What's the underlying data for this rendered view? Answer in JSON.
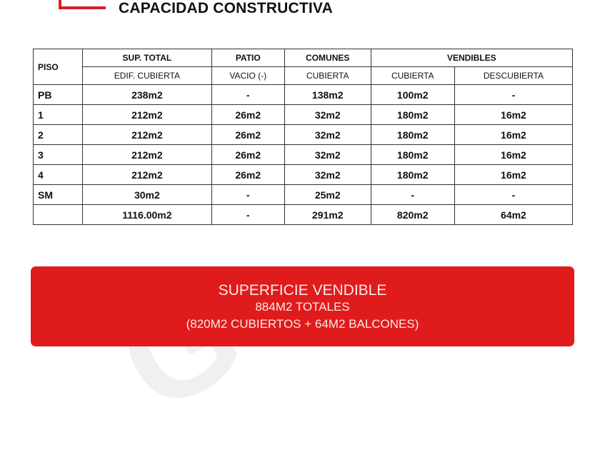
{
  "title": "CAPACIDAD CONSTRUCTIVA",
  "watermark": "Guimat propiedades",
  "table": {
    "header_top": [
      "PISO",
      "SUP. TOTAL",
      "PATIO",
      "COMUNES",
      "VENDIBLES"
    ],
    "header_sub": [
      "EDIF. CUBIERTA",
      "VACIO (-)",
      "CUBIERTA",
      "CUBIERTA",
      "DESCUBIERTA"
    ],
    "rows": [
      [
        "PB",
        "238m2",
        "-",
        "138m2",
        "100m2",
        "-"
      ],
      [
        "1",
        "212m2",
        "26m2",
        "32m2",
        "180m2",
        "16m2"
      ],
      [
        "2",
        "212m2",
        "26m2",
        "32m2",
        "180m2",
        "16m2"
      ],
      [
        "3",
        "212m2",
        "26m2",
        "32m2",
        "180m2",
        "16m2"
      ],
      [
        "4",
        "212m2",
        "26m2",
        "32m2",
        "180m2",
        "16m2"
      ],
      [
        "SM",
        "30m2",
        "-",
        "25m2",
        "-",
        "-"
      ],
      [
        "",
        "1116.00m2",
        "-",
        "291m2",
        "820m2",
        "64m2"
      ]
    ]
  },
  "banner": {
    "line1": "SUPERFICIE VENDIBLE",
    "line2": "884M2 TOTALES",
    "line3": "(820M2 CUBIERTOS + 64M2 BALCONES)",
    "color": "#e01b1b"
  }
}
